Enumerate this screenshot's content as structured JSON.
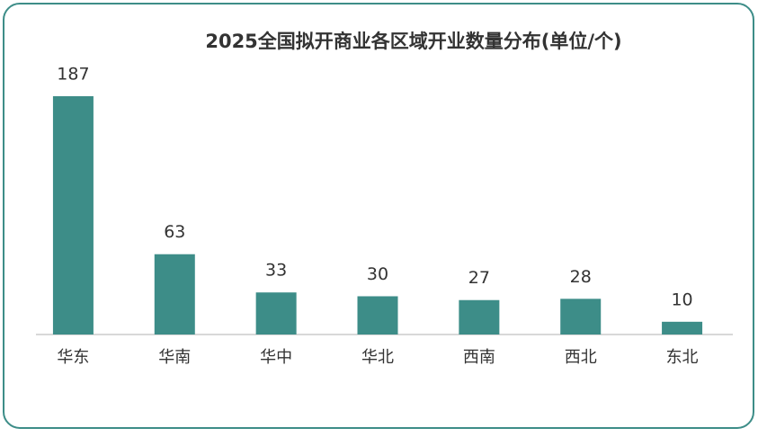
{
  "chart_data": {
    "type": "bar",
    "title": "2025全国拟开商业各区域开业数量分布(单位/个)",
    "categories": [
      "华东",
      "华南",
      "华中",
      "华北",
      "西南",
      "西北",
      "东北"
    ],
    "values": [
      187,
      63,
      33,
      30,
      27,
      28,
      10
    ],
    "color": "#3d8d88"
  }
}
